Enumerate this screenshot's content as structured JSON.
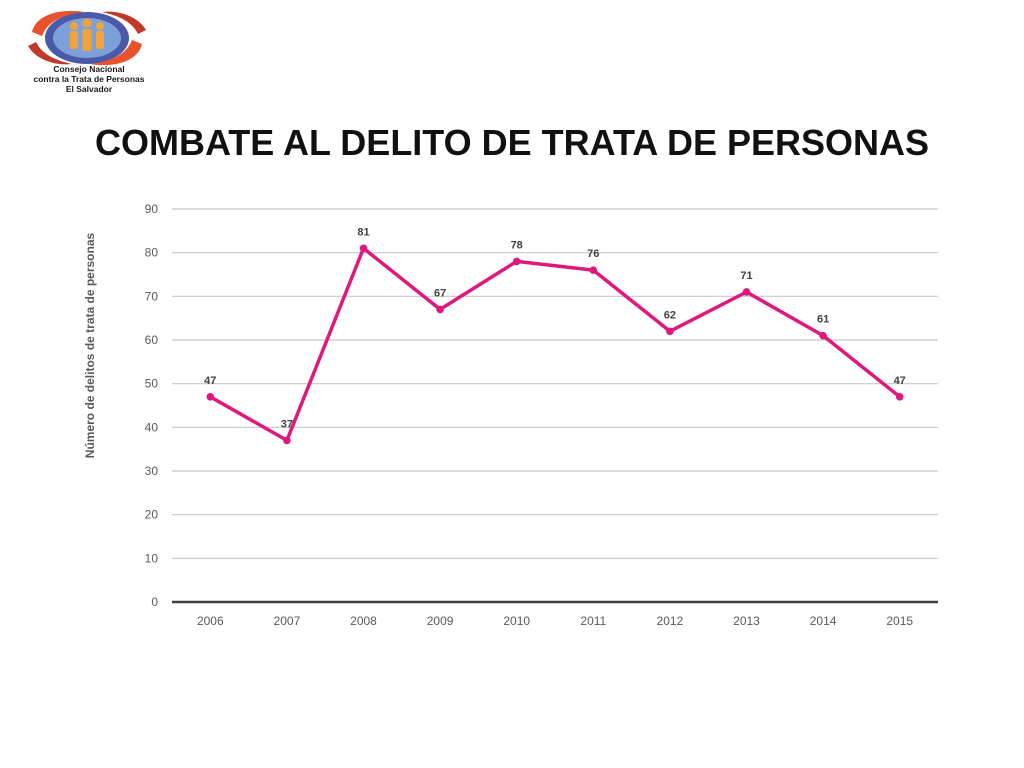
{
  "logo": {
    "lines": [
      "Consejo Nacional",
      "contra la Trata de Personas",
      "El Salvador"
    ]
  },
  "title": "COMBATE AL DELITO DE TRATA DE PERSONAS",
  "chart_data": {
    "type": "line",
    "categories": [
      "2006",
      "2007",
      "2008",
      "2009",
      "2010",
      "2011",
      "2012",
      "2013",
      "2014",
      "2015"
    ],
    "series": [
      {
        "values": [
          47,
          37,
          81,
          67,
          78,
          76,
          62,
          71,
          61,
          47
        ]
      }
    ],
    "title": "",
    "xlabel": "",
    "ylabel": "Número de delitos de  trata de personas",
    "ylim": [
      0,
      90
    ],
    "yticks": [
      0,
      10,
      20,
      30,
      40,
      50,
      60,
      70,
      80,
      90
    ],
    "grid": true,
    "legend": "none",
    "data_labels": true,
    "line_color": "#e0187d",
    "grid_color": "#c8c8c8",
    "axis_color": "#404040"
  }
}
